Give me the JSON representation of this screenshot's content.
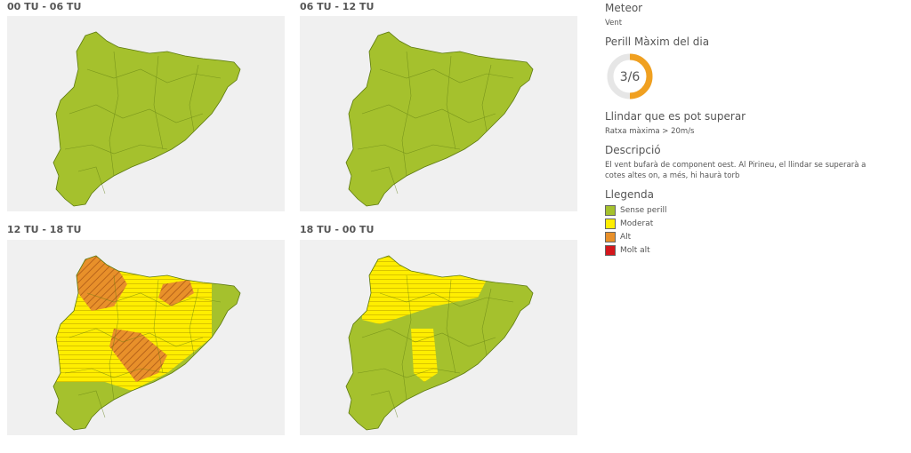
{
  "panels": [
    {
      "title": "00 TU - 06 TU"
    },
    {
      "title": "06 TU - 12 TU"
    },
    {
      "title": "12 TU - 18 TU"
    },
    {
      "title": "18 TU - 00 TU"
    }
  ],
  "sidebar": {
    "meteor_label": "Meteor",
    "meteor": "Vent",
    "danger_label": "Perill Màxim del dia",
    "danger": {
      "label": "3/6",
      "level": 3,
      "max": 6
    },
    "threshold_label": "Llindar que es pot superar",
    "threshold": "Ratxa màxima > 20m/s",
    "description_label": "Descripció",
    "description": "El vent bufarà de component oest. Al Pirineu, el llindar se superarà a cotes altes on, a més, hi haurà torb",
    "legend_label": "Llegenda",
    "legend": [
      {
        "label": "Sense perill",
        "color": "#a5c12d"
      },
      {
        "label": "Moderat",
        "color": "#ffee00"
      },
      {
        "label": "Alt",
        "color": "#e8902a"
      },
      {
        "label": "Molt alt",
        "color": "#d4161c"
      }
    ]
  }
}
